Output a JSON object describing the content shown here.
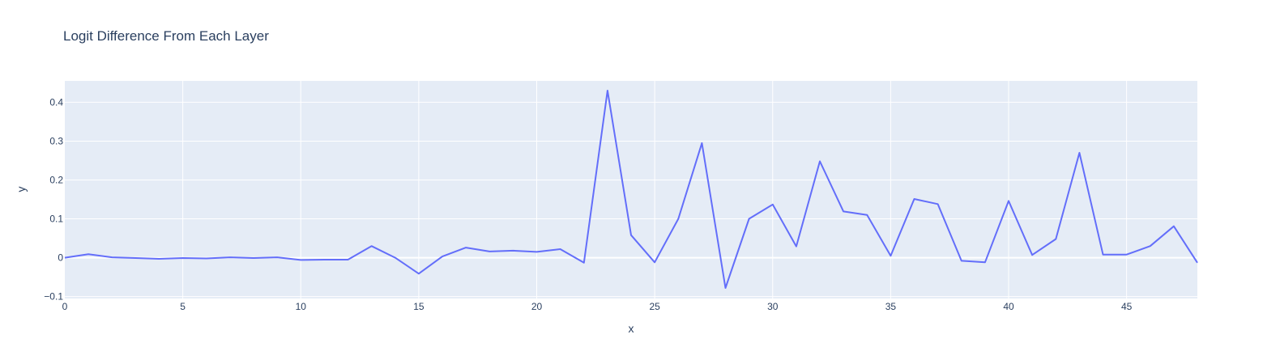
{
  "chart_data": {
    "type": "line",
    "title": "Logit Difference From Each Layer",
    "xlabel": "x",
    "ylabel": "y",
    "xlim": [
      0,
      48
    ],
    "ylim": [
      -0.105,
      0.455
    ],
    "x_ticks": [
      0,
      5,
      10,
      15,
      20,
      25,
      30,
      35,
      40,
      45
    ],
    "y_ticks": [
      -0.1,
      0,
      0.1,
      0.2,
      0.3,
      0.4
    ],
    "y_tick_labels": [
      "−0.1",
      "0",
      "0.1",
      "0.2",
      "0.3",
      "0.4"
    ],
    "grid": true,
    "legend": "none",
    "colors": {
      "line": "#636efa",
      "plot_bg": "#e5ecf6",
      "grid": "#ffffff",
      "text": "#2a3f5f"
    },
    "series": [
      {
        "x": [
          0,
          1,
          2,
          3,
          4,
          5,
          6,
          7,
          8,
          9,
          10,
          11,
          12,
          13,
          14,
          15,
          16,
          17,
          18,
          19,
          20,
          21,
          22,
          23,
          24,
          25,
          26,
          27,
          28,
          29,
          30,
          31,
          32,
          33,
          34,
          35,
          36,
          37,
          38,
          39,
          40,
          41,
          42,
          43,
          44,
          45,
          46,
          47,
          48
        ],
        "y": [
          0,
          0.009,
          0.001,
          -0.001,
          -0.003,
          -0.001,
          -0.002,
          0.001,
          -0.001,
          0.001,
          -0.006,
          -0.005,
          -0.005,
          0.03,
          0,
          -0.041,
          0.003,
          0.026,
          0.016,
          0.018,
          0.015,
          0.022,
          -0.013,
          0.43,
          0.058,
          -0.012,
          0.1,
          0.295,
          -0.078,
          0.1,
          0.137,
          0.029,
          0.248,
          0.119,
          0.11,
          0.005,
          0.151,
          0.138,
          -0.008,
          -0.012,
          0.146,
          0.007,
          0.048,
          0.27,
          0.008,
          0.008,
          0.03,
          0.081,
          -0.013
        ]
      }
    ]
  }
}
